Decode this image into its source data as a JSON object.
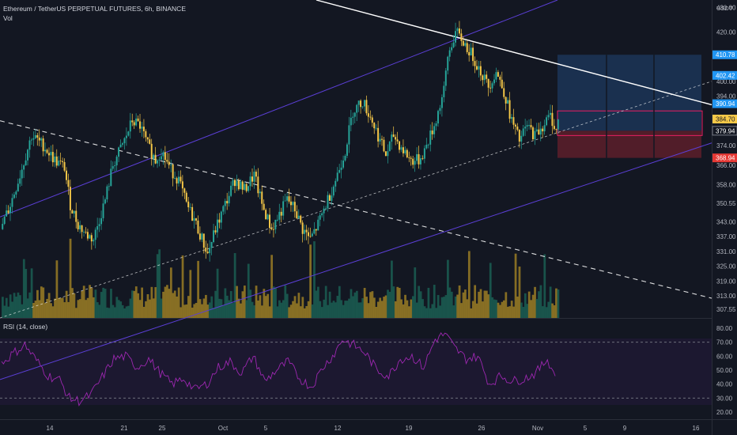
{
  "header": {
    "symbol_title": "Ethereum / TetherUS PERPETUAL FUTURES, 6h, BINANCE",
    "vol_label": "Vol",
    "rsi_label": "RSI (14, close)",
    "currency": "USDT"
  },
  "price_scale": {
    "ticks": [
      "430.00",
      "420.00",
      "410.00",
      "400.00",
      "394.00",
      "374.00",
      "366.00",
      "358.00",
      "350.55",
      "343.00",
      "337.00",
      "331.00",
      "325.00",
      "319.00",
      "313.00",
      "307.55"
    ],
    "badges": [
      {
        "text": "410.78",
        "color": "#2196f3"
      },
      {
        "text": "402.42",
        "color": "#2196f3"
      },
      {
        "text": "390.94",
        "color": "#2196f3"
      },
      {
        "text": "384.70",
        "color": "#f7c948"
      },
      {
        "text": "379.94",
        "color": "#131722"
      },
      {
        "text": "368.94",
        "color": "#e53935"
      }
    ]
  },
  "rsi_scale": {
    "ticks": [
      "80.00",
      "70.00",
      "60.00",
      "50.00",
      "40.00",
      "30.00",
      "20.00"
    ]
  },
  "time_axis": {
    "labels": [
      "14",
      "21",
      "25",
      "Oct",
      "5",
      "12",
      "19",
      "26",
      "Nov",
      "5",
      "9",
      "16"
    ]
  },
  "colors": {
    "background": "#131722",
    "bull": "#26a69a",
    "bear": "#f7c948",
    "vol_bull": "#1b5e52",
    "vol_bear": "#9a7d25",
    "channel": "#5b3fd6",
    "rsi_line": "#9c27b0",
    "target_zone": "#1e3a5f",
    "stop_zone": "#5d1f2a"
  },
  "chart_data": {
    "type": "candlestick",
    "title": "Ethereum / TetherUS PERPETUAL FUTURES, 6h, BINANCE",
    "price_range": [
      304,
      433
    ],
    "rsi_range": [
      20,
      80
    ],
    "rsi_levels": [
      70,
      30
    ],
    "trade_levels": {
      "target": 410.78,
      "entry": 379.94,
      "stop": 368.94
    },
    "close_path": [
      [
        0,
        340
      ],
      [
        5,
        350
      ],
      [
        10,
        362
      ],
      [
        16,
        378
      ],
      [
        22,
        374
      ],
      [
        28,
        368
      ],
      [
        33,
        365
      ],
      [
        36,
        350
      ],
      [
        40,
        342
      ],
      [
        44,
        338
      ],
      [
        48,
        336
      ],
      [
        54,
        352
      ],
      [
        58,
        366
      ],
      [
        64,
        376
      ],
      [
        68,
        384
      ],
      [
        72,
        382
      ],
      [
        76,
        374
      ],
      [
        80,
        368
      ],
      [
        83,
        372
      ],
      [
        88,
        364
      ],
      [
        92,
        360
      ],
      [
        96,
        350
      ],
      [
        100,
        344
      ],
      [
        104,
        336
      ],
      [
        107,
        330
      ],
      [
        111,
        340
      ],
      [
        116,
        350
      ],
      [
        121,
        360
      ],
      [
        126,
        356
      ],
      [
        131,
        362
      ],
      [
        135,
        350
      ],
      [
        140,
        340
      ],
      [
        144,
        346
      ],
      [
        148,
        352
      ],
      [
        152,
        348
      ],
      [
        156,
        340
      ],
      [
        160,
        336
      ],
      [
        164,
        342
      ],
      [
        168,
        350
      ],
      [
        173,
        360
      ],
      [
        178,
        372
      ],
      [
        182,
        388
      ],
      [
        187,
        392
      ],
      [
        192,
        384
      ],
      [
        196,
        376
      ],
      [
        199,
        370
      ],
      [
        203,
        378
      ],
      [
        208,
        372
      ],
      [
        212,
        368
      ],
      [
        216,
        368
      ],
      [
        219,
        372
      ],
      [
        224,
        382
      ],
      [
        229,
        396
      ],
      [
        231,
        410
      ],
      [
        235,
        420
      ],
      [
        239,
        416
      ],
      [
        244,
        410
      ],
      [
        248,
        404
      ],
      [
        252,
        398
      ],
      [
        256,
        404
      ],
      [
        260,
        396
      ],
      [
        264,
        384
      ],
      [
        268,
        376
      ],
      [
        272,
        382
      ],
      [
        276,
        378
      ],
      [
        280,
        382
      ],
      [
        284,
        386
      ],
      [
        287,
        380
      ],
      [
        288,
        384
      ]
    ],
    "rsi_path": [
      [
        0,
        55
      ],
      [
        6,
        62
      ],
      [
        12,
        68
      ],
      [
        18,
        57
      ],
      [
        24,
        46
      ],
      [
        30,
        43
      ],
      [
        35,
        30
      ],
      [
        40,
        28
      ],
      [
        46,
        32
      ],
      [
        52,
        45
      ],
      [
        58,
        58
      ],
      [
        64,
        60
      ],
      [
        70,
        52
      ],
      [
        76,
        58
      ],
      [
        82,
        48
      ],
      [
        88,
        40
      ],
      [
        94,
        44
      ],
      [
        100,
        36
      ],
      [
        106,
        40
      ],
      [
        112,
        52
      ],
      [
        118,
        56
      ],
      [
        124,
        48
      ],
      [
        130,
        60
      ],
      [
        136,
        42
      ],
      [
        142,
        50
      ],
      [
        148,
        56
      ],
      [
        154,
        44
      ],
      [
        160,
        38
      ],
      [
        166,
        52
      ],
      [
        172,
        62
      ],
      [
        176,
        72
      ],
      [
        182,
        68
      ],
      [
        188,
        62
      ],
      [
        194,
        50
      ],
      [
        200,
        46
      ],
      [
        206,
        58
      ],
      [
        212,
        60
      ],
      [
        218,
        52
      ],
      [
        224,
        72
      ],
      [
        229,
        76
      ],
      [
        234,
        66
      ],
      [
        240,
        58
      ],
      [
        246,
        60
      ],
      [
        252,
        40
      ],
      [
        258,
        46
      ],
      [
        264,
        42
      ],
      [
        270,
        44
      ],
      [
        276,
        48
      ],
      [
        282,
        58
      ],
      [
        286,
        46
      ]
    ]
  }
}
